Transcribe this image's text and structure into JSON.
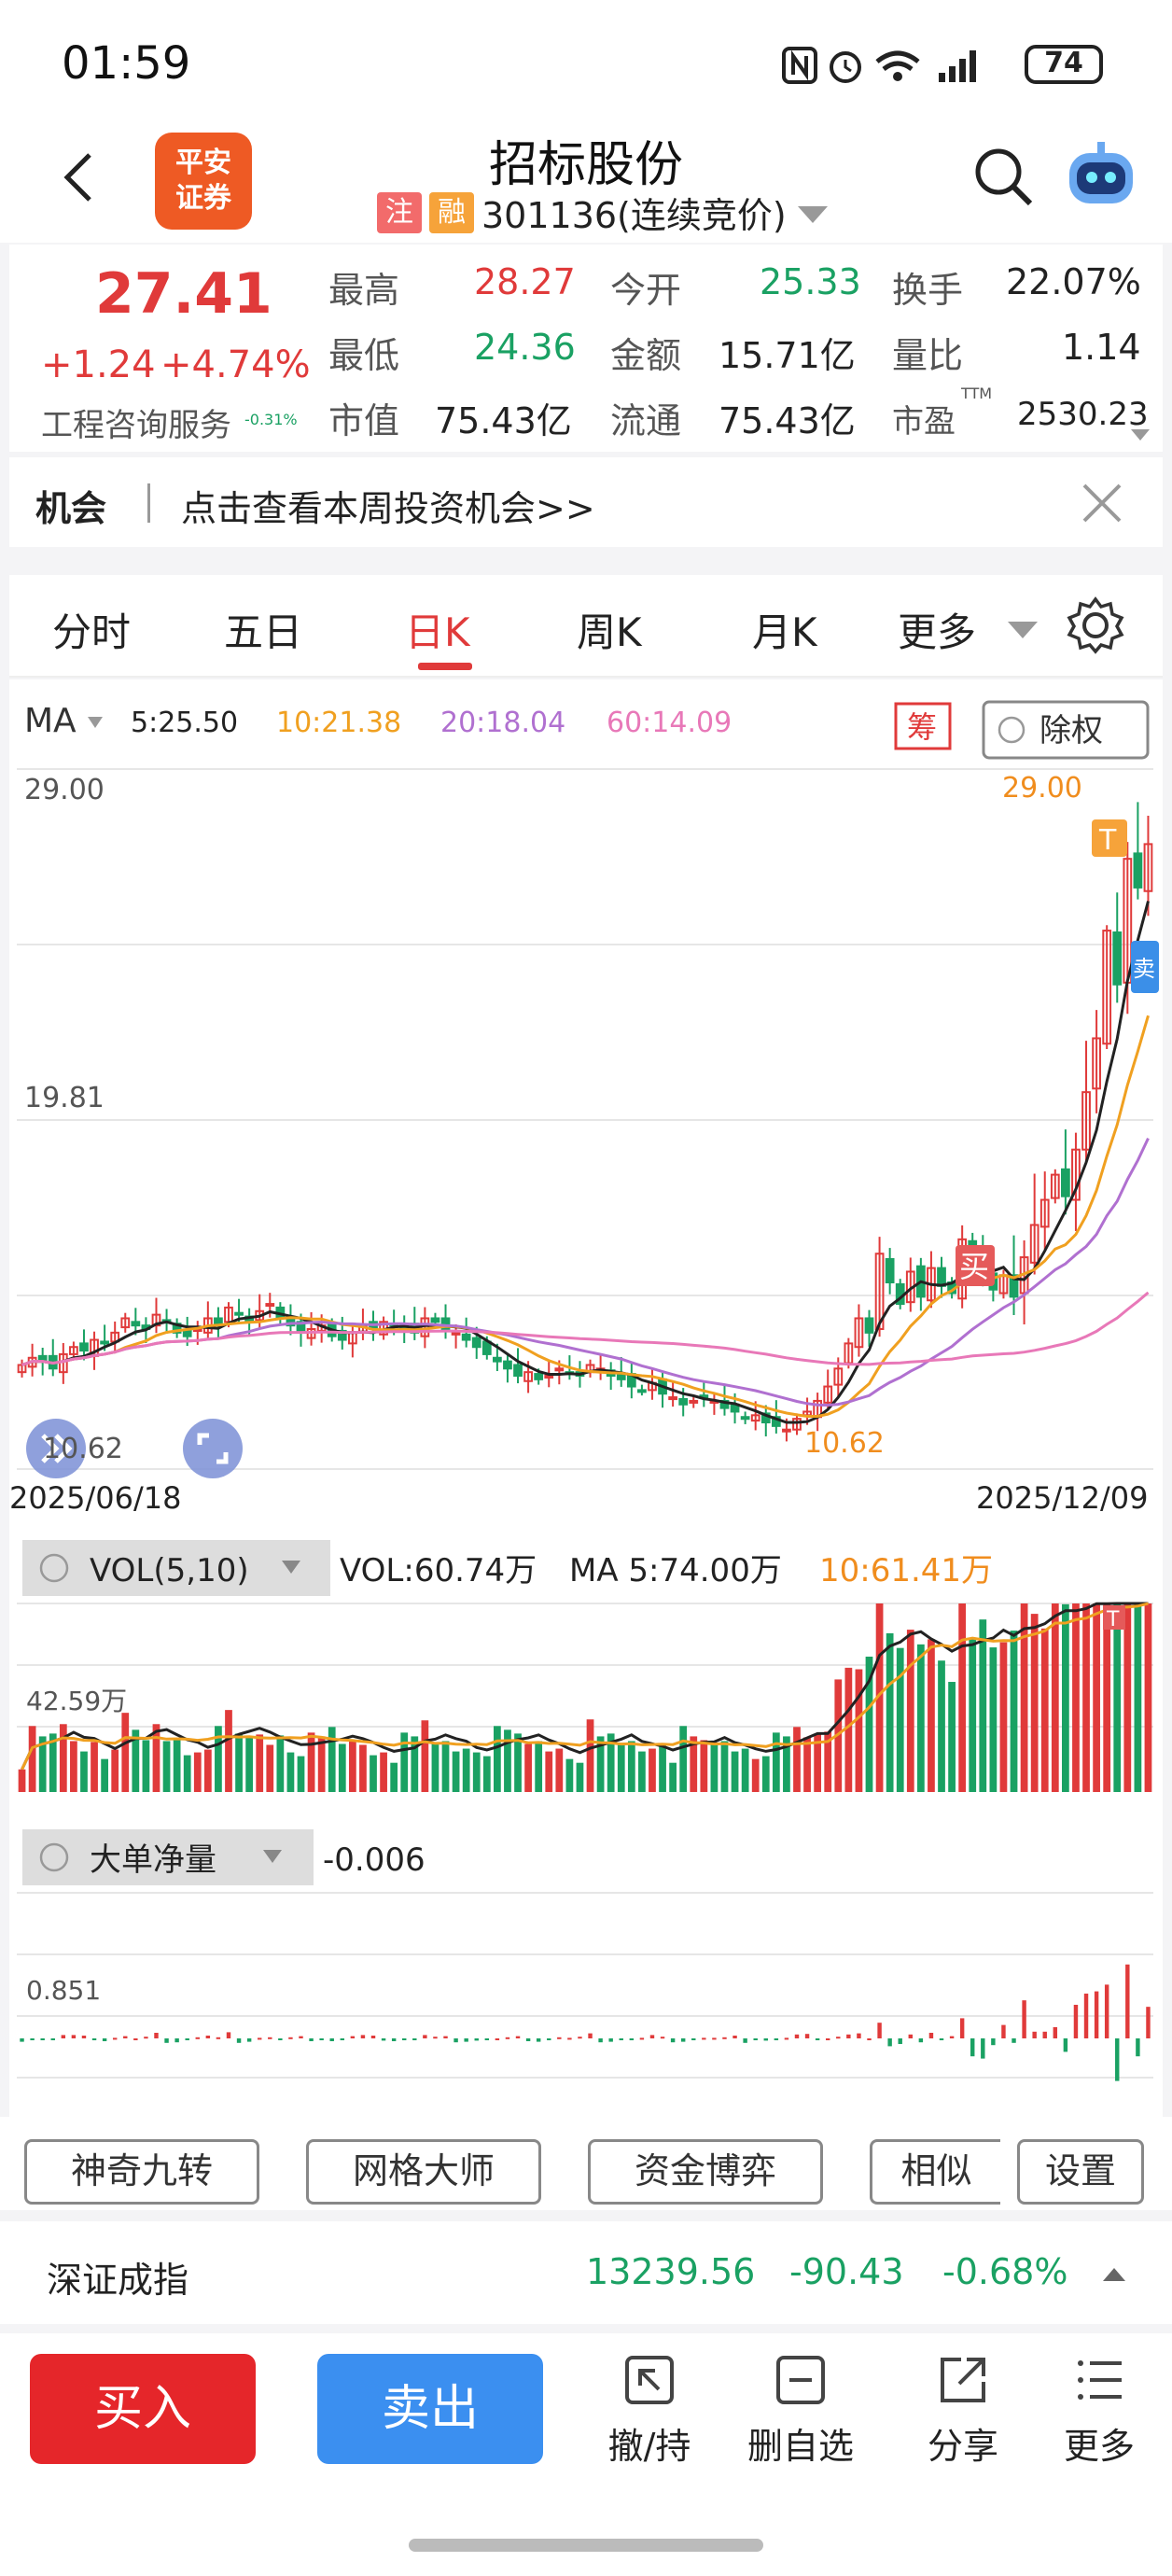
{
  "status_bar": {
    "time": "01:59",
    "battery": "74"
  },
  "header": {
    "logo_line1": "平安",
    "logo_line2": "证券",
    "stock_name": "招标股份",
    "tag_zhu": "注",
    "tag_rong": "融",
    "code": "301136(连续竞价)"
  },
  "quote": {
    "price": "27.41",
    "change": "+1.24",
    "change_pct": "+4.74%",
    "industry": "工程咨询服务",
    "industry_pct": "-0.31%",
    "high_label": "最高",
    "high": "28.27",
    "open_label": "今开",
    "open": "25.33",
    "turnover_label": "换手",
    "turnover": "22.07%",
    "low_label": "最低",
    "low": "24.36",
    "amount_label": "金额",
    "amount": "15.71亿",
    "vol_ratio_label": "量比",
    "vol_ratio": "1.14",
    "mcap_label": "市值",
    "mcap": "75.43亿",
    "float_label": "流通",
    "float": "75.43亿",
    "pe_label": "市盈",
    "pe_sup": "TTM",
    "pe": "2530.23"
  },
  "opportunity": {
    "label": "机会",
    "text": "点击查看本周投资机会>>"
  },
  "tabs": [
    "分时",
    "五日",
    "日K",
    "周K",
    "月K",
    "更多"
  ],
  "active_tab": "日K",
  "ma_bar": {
    "label": "MA",
    "ma5": "5:25.50",
    "ma10": "10:21.38",
    "ma20": "20:18.04",
    "ma60": "60:14.09",
    "chou": "筹",
    "adjust": "除权",
    "colors": {
      "ma5": "#222222",
      "ma10": "#f0a020",
      "ma20": "#b070d0",
      "ma60": "#e878b8"
    }
  },
  "kline": {
    "y_top": "29.00",
    "y_mid": "19.81",
    "y_low": "10.62",
    "max_label": "29.00",
    "min_label": "10.62",
    "start_date": "2025/06/18",
    "end_date": "2025/12/09",
    "buy_marker": "买",
    "t_marker": "T",
    "sell_marker": "卖"
  },
  "volume": {
    "label": "VOL(5,10)",
    "vol": "VOL:60.74万",
    "ma5": "MA 5:74.00万",
    "ma10": "10:61.41万",
    "y_label": "42.59万",
    "t_marker": "T"
  },
  "big_order": {
    "label": "大单净量",
    "value": "-0.006",
    "y_label": "0.851"
  },
  "tools": [
    "神奇九转",
    "网格大师",
    "资金博弈",
    "相似",
    "设置"
  ],
  "index": {
    "name": "深证成指",
    "value": "13239.56",
    "change": "-90.43",
    "pct": "-0.68%"
  },
  "bottom": {
    "buy": "买入",
    "sell": "卖出",
    "items": [
      "撤/持",
      "删自选",
      "分享",
      "更多"
    ]
  },
  "chart_data": {
    "type": "candlestick",
    "x_start": "2025/06/18",
    "x_end": "2025/12/09",
    "ylim": [
      10.62,
      29.0
    ],
    "y_ticks": [
      29.0,
      19.81,
      10.62
    ],
    "closes": [
      12.9,
      13.1,
      13.0,
      12.8,
      13.2,
      13.4,
      13.3,
      13.6,
      13.5,
      13.8,
      14.2,
      14.0,
      13.9,
      14.3,
      14.1,
      13.8,
      13.7,
      13.9,
      14.2,
      14.0,
      14.5,
      14.3,
      14.1,
      14.4,
      14.6,
      14.2,
      14.0,
      13.8,
      13.9,
      14.0,
      13.7,
      13.6,
      13.8,
      14.0,
      13.9,
      14.1,
      14.0,
      13.9,
      13.8,
      14.2,
      14.1,
      13.9,
      13.8,
      13.6,
      13.4,
      13.2,
      13.0,
      12.8,
      12.6,
      12.7,
      12.5,
      12.6,
      12.8,
      12.7,
      12.6,
      12.9,
      12.8,
      12.6,
      12.5,
      12.3,
      12.2,
      12.4,
      12.1,
      12.0,
      11.8,
      11.9,
      12.0,
      11.9,
      11.7,
      11.6,
      11.4,
      11.5,
      11.3,
      11.2,
      11.1,
      11.4,
      11.6,
      11.9,
      12.3,
      12.8,
      13.5,
      14.2,
      13.8,
      16.0,
      15.2,
      14.6,
      15.5,
      14.8,
      15.6,
      15.1,
      14.9,
      16.4,
      16.0,
      15.3,
      15.0,
      15.4,
      14.8,
      15.9,
      16.8,
      17.5,
      18.2,
      17.6,
      18.9,
      20.5,
      22.0,
      25.0,
      23.5,
      27.0,
      26.2,
      27.41
    ],
    "y_label": "",
    "x_label": ""
  }
}
